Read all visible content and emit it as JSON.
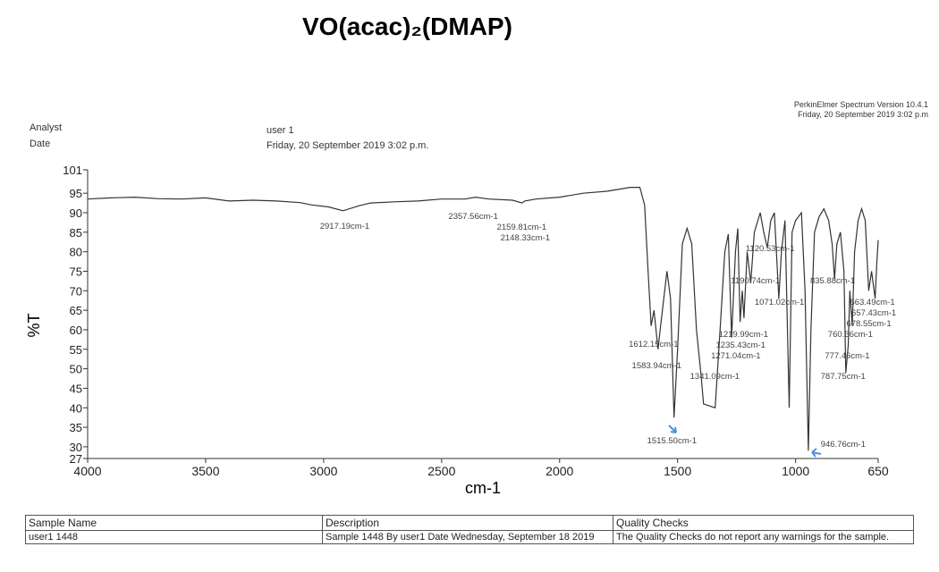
{
  "header": {
    "title": "VO(acac)₂(DMAP)",
    "software": "PerkinElmer Spectrum Version 10.4.1",
    "print_date": "Friday, 20 September 2019 3:02 p.m",
    "analyst_label": "Analyst",
    "date_label": "Date",
    "analyst": "user 1",
    "date": "Friday, 20 September 2019 3:02 p.m."
  },
  "chart_data": {
    "type": "line",
    "x_label": "cm-1",
    "y_label": "%T",
    "xlim": [
      4000,
      650
    ],
    "xticks": [
      4000,
      3500,
      3000,
      2500,
      2000,
      1500,
      1000,
      650
    ],
    "ylim": [
      27,
      101
    ],
    "yticks": [
      27,
      30,
      35,
      40,
      45,
      50,
      55,
      60,
      65,
      70,
      75,
      80,
      85,
      90,
      95,
      101
    ],
    "x": [
      4000,
      3900,
      3800,
      3700,
      3600,
      3500,
      3400,
      3300,
      3200,
      3100,
      3050,
      2980,
      2917,
      2850,
      2800,
      2700,
      2600,
      2500,
      2400,
      2357,
      2300,
      2200,
      2159,
      2148,
      2100,
      2000,
      1900,
      1800,
      1700,
      1660,
      1640,
      1625,
      1612,
      1600,
      1583,
      1570,
      1545,
      1530,
      1515,
      1500,
      1480,
      1460,
      1440,
      1420,
      1400,
      1390,
      1341,
      1320,
      1300,
      1285,
      1271,
      1255,
      1245,
      1235,
      1226,
      1219,
      1205,
      1190,
      1175,
      1150,
      1135,
      1120,
      1105,
      1090,
      1071,
      1060,
      1045,
      1027,
      1015,
      1000,
      975,
      960,
      946,
      935,
      920,
      900,
      880,
      860,
      845,
      835,
      825,
      810,
      795,
      787,
      777,
      770,
      760,
      750,
      735,
      720,
      705,
      690,
      678,
      663,
      657,
      650
    ],
    "series": [
      {
        "color": "#333333",
        "values": [
          93.5,
          93.8,
          94,
          93.6,
          93.5,
          93.8,
          93,
          93.2,
          93,
          92.6,
          92,
          91.5,
          90.5,
          91.8,
          92.5,
          92.8,
          93,
          93.5,
          93.5,
          94,
          93.5,
          93.2,
          92.5,
          93,
          93.5,
          94,
          95,
          95.5,
          96.5,
          96.5,
          92,
          75,
          61,
          65,
          55,
          62,
          75,
          68,
          37.5,
          55,
          82,
          86,
          82,
          60,
          48,
          41,
          40,
          60,
          80,
          84.5,
          58,
          80,
          86,
          62,
          70,
          63,
          80,
          72,
          85,
          90,
          85,
          81,
          88,
          90,
          68,
          80,
          88,
          40,
          85,
          88,
          90,
          70,
          29,
          60,
          85,
          89,
          91,
          88,
          82,
          73,
          82,
          85,
          75,
          49,
          56,
          70,
          61,
          80,
          88,
          91,
          88,
          70,
          75,
          68,
          76,
          83
        ]
      }
    ],
    "annotations": [
      {
        "text": "2917.19cm-1",
        "x": 2917.19
      },
      {
        "text": "2357.56cm-1",
        "x": 2357.56
      },
      {
        "text": "2159.81cm-1",
        "x": 2159.81
      },
      {
        "text": "2148.33cm-1",
        "x": 2148.33
      },
      {
        "text": "1612.15cm-1",
        "x": 1612.15
      },
      {
        "text": "1583.94cm-1",
        "x": 1583.94
      },
      {
        "text": "1515.50cm-1",
        "x": 1515.5
      },
      {
        "text": "1341.09cm-1",
        "x": 1341.09
      },
      {
        "text": "1271.04cm-1",
        "x": 1271.04
      },
      {
        "text": "1235.43cm-1",
        "x": 1235.43
      },
      {
        "text": "1219.99cm-1",
        "x": 1219.99
      },
      {
        "text": "1190.74cm-1",
        "x": 1190.74
      },
      {
        "text": "1120.53cm-1",
        "x": 1120.53
      },
      {
        "text": "1071.02cm-1",
        "x": 1071.02
      },
      {
        "text": "946.76cm-1",
        "x": 946.76
      },
      {
        "text": "835.88cm-1",
        "x": 835.88
      },
      {
        "text": "787.75cm-1",
        "x": 787.75
      },
      {
        "text": "777.46cm-1",
        "x": 777.46
      },
      {
        "text": "760.66cm-1",
        "x": 760.66
      },
      {
        "text": "678.55cm-1",
        "x": 678.55
      },
      {
        "text": "657.43cm-1",
        "x": 657.43
      },
      {
        "text": "663.49cm-1",
        "x": 663.49
      }
    ]
  },
  "table": {
    "header": [
      "Sample Name",
      "Description",
      "Quality Checks"
    ],
    "rows": [
      [
        "user1 1448",
        "Sample 1448 By user1 Date Wednesday, September 18 2019",
        "The Quality Checks do not report any warnings for the sample."
      ]
    ]
  }
}
